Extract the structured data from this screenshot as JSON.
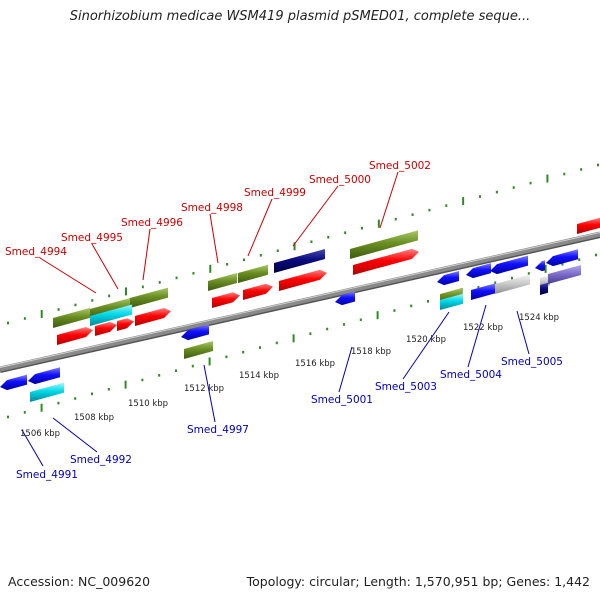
{
  "title": "Sinorhizobium medicae WSM419 plasmid pSMED01, complete seque...",
  "footer": {
    "accession": "Accession: NC_009620",
    "summary": "Topology: circular; Length: 1,570,951 bp; Genes: 1,442"
  },
  "colors": {
    "backbone": "#8a8a8a",
    "tick": "#2e8b22",
    "label_top": "#cc0000",
    "label_bottom": "#0000bb",
    "red": "#ff0000",
    "blue": "#1010ff",
    "olive": "#6a8e22",
    "navy": "#0a0a80",
    "cyan": "#00d8e8",
    "gray": "#cccccc",
    "purple": "#8070cc"
  },
  "scale_labels": [
    "1506 kbp",
    "1508 kbp",
    "1510 kbp",
    "1512 kbp",
    "1514 kbp",
    "1516 kbp",
    "1518 kbp",
    "1520 kbp",
    "1522 kbp",
    "1524 kbp"
  ],
  "top_labels": [
    "Smed_4994",
    "Smed_4995",
    "Smed_4996",
    "Smed_4998",
    "Smed_4999",
    "Smed_5000",
    "Smed_5002"
  ],
  "bottom_labels": [
    "Smed_4991",
    "Smed_4992",
    "Smed_4997",
    "Smed_5001",
    "Smed_5003",
    "Smed_5004",
    "Smed_5005"
  ]
}
